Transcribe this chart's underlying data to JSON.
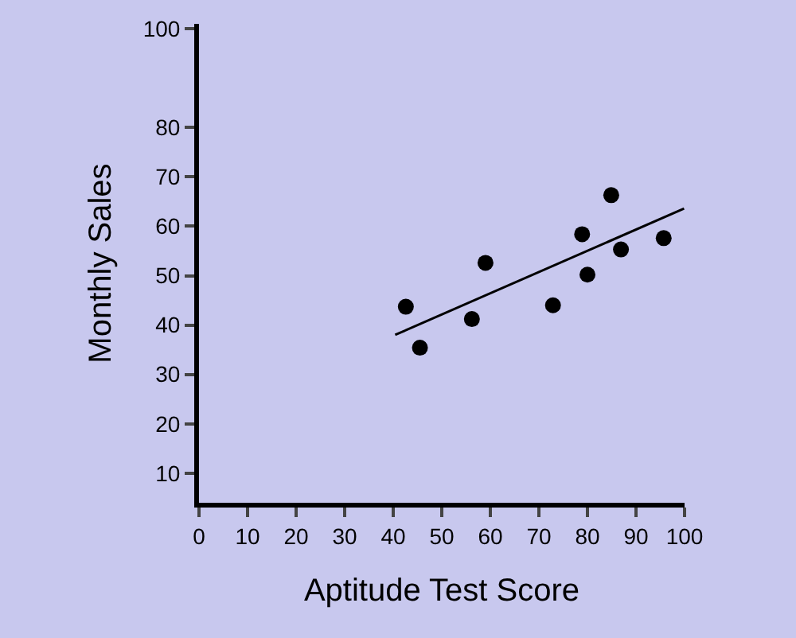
{
  "chart_data": {
    "type": "scatter",
    "xlabel": "Aptitude Test Score",
    "ylabel": "Monthly Sales",
    "xlim": [
      0,
      100
    ],
    "xticks": [
      0,
      10,
      20,
      30,
      40,
      50,
      60,
      70,
      80,
      90,
      100
    ],
    "ylim": [
      4,
      101
    ],
    "yticks": [
      10,
      20,
      30,
      40,
      50,
      60,
      70,
      80,
      100
    ],
    "grid": false,
    "series": [
      {
        "color": "#000000",
        "marker": "circle",
        "x": [
          42.6,
          45.5,
          56.2,
          59,
          72.9,
          78.9,
          80,
          84.9,
          86.9,
          95.7
        ],
        "values": [
          43.7,
          35.4,
          41.2,
          52.6,
          44,
          58.4,
          50.2,
          66.3,
          55.3,
          57.6
        ]
      },
      {
        "type": "line",
        "marker": "none",
        "color": "#000000",
        "x": [
          40.4,
          99.9
        ],
        "values": [
          38,
          63.6
        ]
      }
    ]
  }
}
